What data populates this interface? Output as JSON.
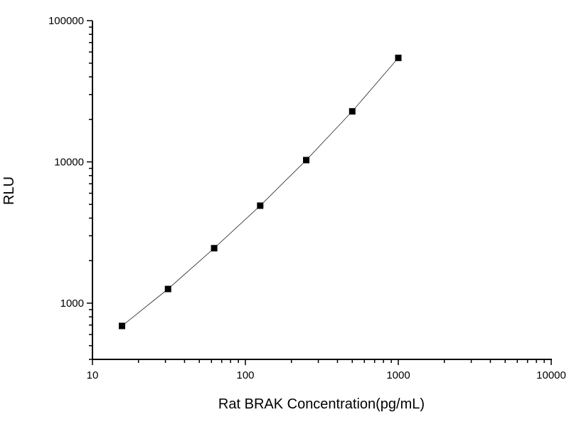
{
  "chart_data": {
    "type": "line",
    "title": "",
    "xlabel": "Rat BRAK Concentration(pg/mL)",
    "ylabel": "RLU",
    "x_scale": "log",
    "y_scale": "log",
    "xlim": [
      10,
      10000
    ],
    "ylim": [
      400,
      100000
    ],
    "x_ticks": [
      "10",
      "100",
      "1000",
      "10000"
    ],
    "y_ticks": [
      "1000",
      "10000",
      "100000"
    ],
    "grid": false,
    "marker": "square",
    "color": "#000000",
    "series": [
      {
        "x": [
          15.6,
          31.2,
          62.5,
          125,
          250,
          500,
          1000
        ],
        "y": [
          690,
          1260,
          2450,
          4900,
          10300,
          22800,
          54500
        ]
      }
    ]
  }
}
